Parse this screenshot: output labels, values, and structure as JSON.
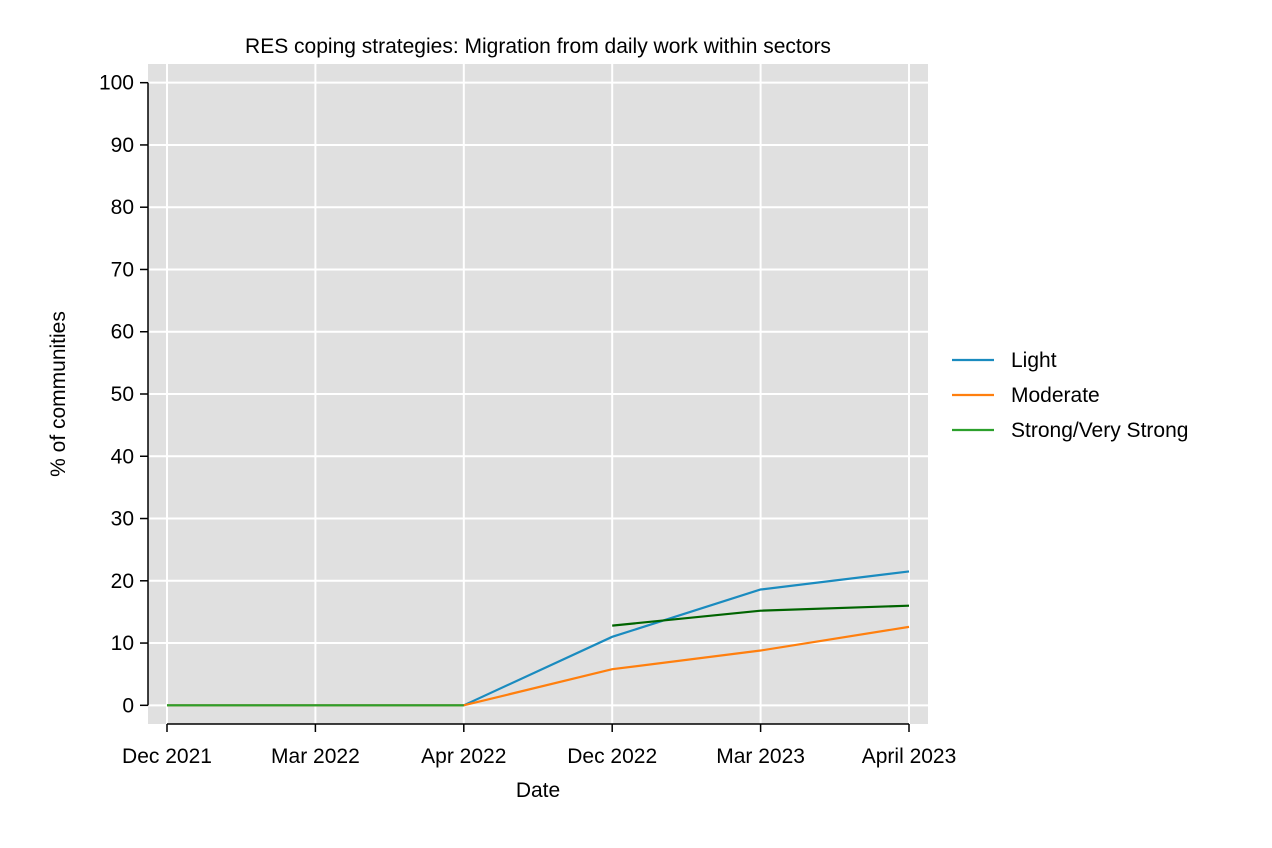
{
  "chart_data": {
    "type": "line",
    "title": "RES coping strategies: Migration from daily work within sectors",
    "xlabel": "Date",
    "ylabel": "% of communities",
    "categories": [
      "Dec 2021",
      "Mar 2022",
      "Apr 2022",
      "Dec 2022",
      "Mar 2023",
      "April 2023"
    ],
    "yticks": [
      0,
      10,
      20,
      30,
      40,
      50,
      60,
      70,
      80,
      90,
      100
    ],
    "ylim": [
      -3,
      103
    ],
    "grid": true,
    "legend_position": "right",
    "series": [
      {
        "name": "Light",
        "color": "#1a8bbf",
        "values": [
          0,
          0,
          0,
          11,
          18.6,
          21.5
        ]
      },
      {
        "name": "Moderate",
        "color": "#ff7f0e",
        "values": [
          0,
          0,
          0,
          5.8,
          8.8,
          12.6
        ]
      },
      {
        "name": "Strong/Very Strong",
        "color": "#2ca02c",
        "values": [
          0,
          0,
          0,
          null,
          null,
          null
        ]
      },
      {
        "name": "",
        "color": "#006400",
        "values": [
          null,
          null,
          null,
          12.8,
          15.2,
          16.0
        ]
      }
    ]
  }
}
